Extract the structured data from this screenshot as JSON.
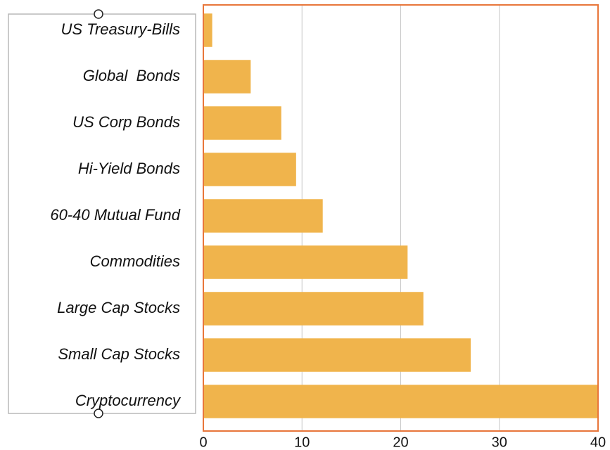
{
  "chart_data": {
    "type": "bar",
    "orientation": "horizontal",
    "categories": [
      "US Treasury-Bills",
      "Global  Bonds",
      "US Corp Bonds",
      "Hi-Yield Bonds",
      "60-40 Mutual Fund",
      "Commodities",
      "Large Cap Stocks",
      "Small Cap Stocks",
      "Cryptocurrency"
    ],
    "values": [
      0.9,
      4.8,
      7.9,
      9.4,
      12.1,
      20.7,
      22.3,
      27.1,
      40
    ],
    "color": "#f0b44c",
    "xlim": [
      0,
      40
    ],
    "xticks": [
      0,
      10,
      20,
      30,
      40
    ],
    "grid": true
  }
}
